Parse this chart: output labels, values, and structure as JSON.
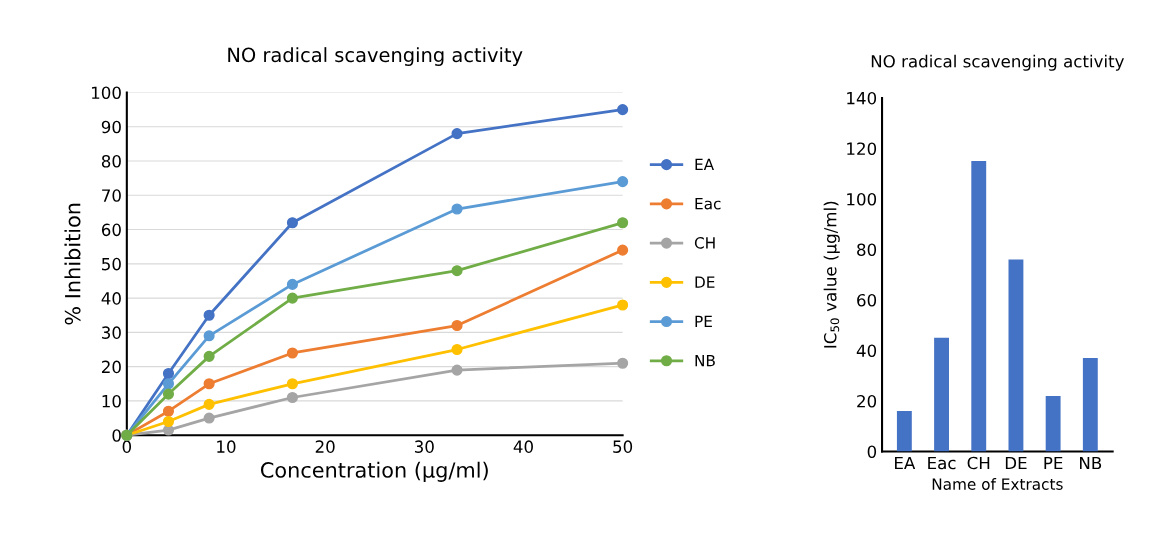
{
  "chart_data": [
    {
      "type": "line",
      "title": "NO radical scavenging activity",
      "xlabel": "Concentration (µg/ml)",
      "ylabel": "% Inhibition",
      "x": [
        0,
        4.2,
        8.3,
        16.7,
        33.3,
        50
      ],
      "series": [
        {
          "name": "EA",
          "color": "#4472c4",
          "values": [
            0,
            18,
            35,
            62,
            88,
            95
          ]
        },
        {
          "name": "Eac",
          "color": "#ed7d31",
          "values": [
            0,
            7,
            15,
            24,
            32,
            54
          ]
        },
        {
          "name": "CH",
          "color": "#a5a5a5",
          "values": [
            0,
            1.5,
            5,
            11,
            19,
            21
          ]
        },
        {
          "name": "DE",
          "color": "#ffc000",
          "values": [
            0,
            4,
            9,
            15,
            25,
            38
          ]
        },
        {
          "name": "PE",
          "color": "#5b9bd5",
          "values": [
            0,
            15,
            29,
            44,
            66,
            74
          ]
        },
        {
          "name": "NB",
          "color": "#70ad47",
          "values": [
            0,
            12,
            23,
            40,
            48,
            62
          ]
        }
      ],
      "xlim": [
        0,
        50
      ],
      "xticks": [
        0,
        10,
        20,
        30,
        40,
        50
      ],
      "ylim": [
        0,
        100
      ],
      "yticks": [
        0,
        10,
        20,
        30,
        40,
        50,
        60,
        70,
        80,
        90,
        100
      ],
      "grid": "y",
      "legend": "right",
      "marker": "circle",
      "line_style": "solid"
    },
    {
      "type": "bar",
      "title": "NO radical scavenging activity",
      "xlabel": "Name of Extracts",
      "ylabel": "IC$_{50}$ value (µg/ml)",
      "categories": [
        "EA",
        "Eac",
        "CH",
        "DE",
        "PE",
        "NB"
      ],
      "values": [
        16,
        45,
        115,
        76,
        22,
        37
      ],
      "color": "#4472c4",
      "ylim": [
        0,
        140
      ],
      "yticks": [
        0,
        20,
        40,
        60,
        80,
        100,
        120,
        140
      ],
      "grid": false
    }
  ]
}
